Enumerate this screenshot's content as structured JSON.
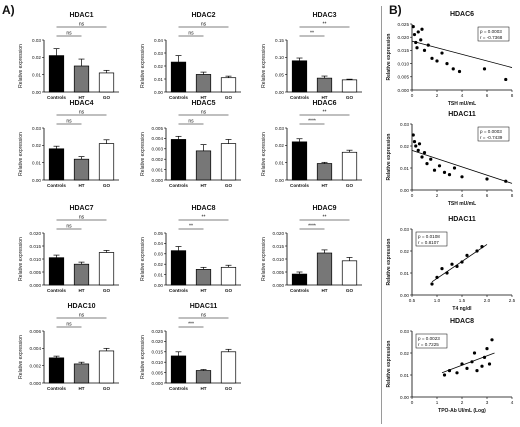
{
  "panels": {
    "a_label": "A)",
    "b_label": "B)"
  },
  "chart_data": [
    {
      "type": "bar",
      "title": "HDAC1",
      "ylabel": "Relative expression",
      "categories": [
        "Controls",
        "HT",
        "GO"
      ],
      "values": [
        0.021,
        0.015,
        0.011
      ],
      "errors": [
        0.004,
        0.004,
        0.0015
      ],
      "ylim": [
        0,
        0.03
      ],
      "yticks": [
        "0.00",
        "0.01",
        "0.02",
        "0.03"
      ],
      "sig": [
        {
          "from": 0,
          "to": 1,
          "label": "ns"
        },
        {
          "from": 0,
          "to": 2,
          "label": "ns"
        }
      ]
    },
    {
      "type": "bar",
      "title": "HDAC2",
      "ylabel": "Relative expression",
      "categories": [
        "Controls",
        "HT",
        "GO"
      ],
      "values": [
        0.023,
        0.0135,
        0.011
      ],
      "errors": [
        0.005,
        0.0018,
        0.0012
      ],
      "ylim": [
        0,
        0.04
      ],
      "yticks": [
        "0.00",
        "0.01",
        "0.02",
        "0.03",
        "0.04"
      ],
      "sig": [
        {
          "from": 0,
          "to": 1,
          "label": "ns"
        },
        {
          "from": 0,
          "to": 2,
          "label": "ns"
        }
      ]
    },
    {
      "type": "bar",
      "title": "HDAC3",
      "ylabel": "Relative expression",
      "categories": [
        "Controls",
        "HT",
        "GO"
      ],
      "values": [
        0.09,
        0.04,
        0.035
      ],
      "errors": [
        0.008,
        0.006,
        0.002
      ],
      "ylim": [
        0,
        0.15
      ],
      "yticks": [
        "0.00",
        "0.05",
        "0.10",
        "0.15"
      ],
      "sig": [
        {
          "from": 0,
          "to": 1,
          "label": "**"
        },
        {
          "from": 0,
          "to": 2,
          "label": "**"
        }
      ]
    },
    {
      "type": "bar",
      "title": "HDAC4",
      "ylabel": "Relative expression",
      "categories": [
        "Controls",
        "HT",
        "GO"
      ],
      "values": [
        0.018,
        0.012,
        0.021
      ],
      "errors": [
        0.0015,
        0.0015,
        0.0022
      ],
      "ylim": [
        0,
        0.03
      ],
      "yticks": [
        "0.00",
        "0.01",
        "0.02",
        "0.03"
      ],
      "sig": [
        {
          "from": 0,
          "to": 1,
          "label": "ns"
        },
        {
          "from": 0,
          "to": 2,
          "label": "ns"
        }
      ]
    },
    {
      "type": "bar",
      "title": "HDAC5",
      "ylabel": "Relative expression",
      "categories": [
        "Controls",
        "HT",
        "GO"
      ],
      "values": [
        0.0039,
        0.0028,
        0.0035
      ],
      "errors": [
        0.0003,
        0.0006,
        0.0004
      ],
      "ylim": [
        0,
        0.005
      ],
      "yticks": [
        "0.000",
        "0.001",
        "0.002",
        "0.003",
        "0.004",
        "0.005"
      ],
      "sig": [
        {
          "from": 0,
          "to": 1,
          "label": "ns"
        },
        {
          "from": 0,
          "to": 2,
          "label": "ns"
        }
      ]
    },
    {
      "type": "bar",
      "title": "HDAC6",
      "ylabel": "Relative expression",
      "categories": [
        "Controls",
        "HT",
        "GO"
      ],
      "values": [
        0.022,
        0.0095,
        0.016
      ],
      "errors": [
        0.0018,
        0.0007,
        0.0012
      ],
      "ylim": [
        0,
        0.03
      ],
      "yticks": [
        "0.00",
        "0.01",
        "0.02",
        "0.03"
      ],
      "sig": [
        {
          "from": 0,
          "to": 1,
          "label": "****"
        },
        {
          "from": 0,
          "to": 2,
          "label": "**"
        }
      ]
    },
    {
      "type": "bar",
      "title": "HDAC7",
      "ylabel": "Relative expression",
      "categories": [
        "Controls",
        "HT",
        "GO"
      ],
      "values": [
        0.0105,
        0.008,
        0.0125
      ],
      "errors": [
        0.001,
        0.0008,
        0.0008
      ],
      "ylim": [
        0,
        0.02
      ],
      "yticks": [
        "0.000",
        "0.005",
        "0.010",
        "0.015",
        "0.020"
      ],
      "sig": [
        {
          "from": 0,
          "to": 1,
          "label": "ns"
        },
        {
          "from": 0,
          "to": 2,
          "label": "ns"
        }
      ]
    },
    {
      "type": "bar",
      "title": "HDAC8",
      "ylabel": "Relative expression",
      "categories": [
        "Controls",
        "HT",
        "GO"
      ],
      "values": [
        0.033,
        0.015,
        0.017
      ],
      "errors": [
        0.004,
        0.002,
        0.002
      ],
      "ylim": [
        0,
        0.05
      ],
      "yticks": [
        "0.00",
        "0.01",
        "0.02",
        "0.03",
        "0.04",
        "0.05"
      ],
      "sig": [
        {
          "from": 0,
          "to": 1,
          "label": "**"
        },
        {
          "from": 0,
          "to": 2,
          "label": "**"
        }
      ]
    },
    {
      "type": "bar",
      "title": "HDAC9",
      "ylabel": "Relative expression",
      "categories": [
        "Controls",
        "HT",
        "GO"
      ],
      "values": [
        0.0042,
        0.0123,
        0.0093
      ],
      "errors": [
        0.0008,
        0.0012,
        0.0013
      ],
      "ylim": [
        0,
        0.02
      ],
      "yticks": [
        "0.000",
        "0.005",
        "0.010",
        "0.015",
        "0.020"
      ],
      "sig": [
        {
          "from": 0,
          "to": 1,
          "label": "****"
        },
        {
          "from": 0,
          "to": 2,
          "label": "**"
        }
      ]
    },
    {
      "type": "bar",
      "title": "HDAC10",
      "ylabel": "Relative expression",
      "categories": [
        "Controls",
        "HT",
        "GO"
      ],
      "values": [
        0.0029,
        0.0022,
        0.0037
      ],
      "errors": [
        0.0002,
        0.0002,
        0.0003
      ],
      "ylim": [
        0,
        0.006
      ],
      "yticks": [
        "0.000",
        "0.002",
        "0.004",
        "0.006"
      ],
      "sig": [
        {
          "from": 0,
          "to": 1,
          "label": "ns"
        },
        {
          "from": 0,
          "to": 2,
          "label": "ns"
        }
      ]
    },
    {
      "type": "bar",
      "title": "HDAC11",
      "ylabel": "Relative expression",
      "categories": [
        "Controls",
        "HT",
        "GO"
      ],
      "values": [
        0.013,
        0.006,
        0.015
      ],
      "errors": [
        0.002,
        0.0005,
        0.0012
      ],
      "ylim": [
        0,
        0.025
      ],
      "yticks": [
        "0.000",
        "0.005",
        "0.010",
        "0.015",
        "0.020",
        "0.025"
      ],
      "sig": [
        {
          "from": 0,
          "to": 1,
          "label": "***"
        },
        {
          "from": 0,
          "to": 2,
          "label": "ns"
        }
      ]
    },
    {
      "type": "scatter",
      "title": "HDAC6",
      "xlabel": "TSH mU/mL",
      "ylabel": "Relative expression",
      "xlim": [
        0,
        8
      ],
      "ylim": [
        0,
        0.025
      ],
      "xticks": [
        "0",
        "2",
        "4",
        "6",
        "8"
      ],
      "yticks": [
        "0.000",
        "0.005",
        "0.010",
        "0.015",
        "0.020",
        "0.025"
      ],
      "stats": [
        "p = 0.0003",
        "r = -0.7368"
      ],
      "points": [
        [
          0.1,
          0.024
        ],
        [
          0.2,
          0.021
        ],
        [
          0.3,
          0.018
        ],
        [
          0.4,
          0.016
        ],
        [
          0.5,
          0.022
        ],
        [
          0.7,
          0.019
        ],
        [
          0.8,
          0.023
        ],
        [
          1.0,
          0.015
        ],
        [
          1.3,
          0.017
        ],
        [
          1.6,
          0.012
        ],
        [
          2.0,
          0.011
        ],
        [
          2.4,
          0.014
        ],
        [
          2.8,
          0.01
        ],
        [
          3.3,
          0.008
        ],
        [
          3.8,
          0.007
        ],
        [
          5.8,
          0.008
        ],
        [
          7.5,
          0.004
        ]
      ],
      "fit": [
        [
          0,
          0.0185
        ],
        [
          8,
          0.0085
        ]
      ]
    },
    {
      "type": "scatter",
      "title": "HDAC11",
      "xlabel": "TSH mU/mL",
      "ylabel": "Relative expression",
      "xlim": [
        0,
        8
      ],
      "ylim": [
        0,
        0.03
      ],
      "xticks": [
        "0",
        "2",
        "4",
        "6",
        "8"
      ],
      "yticks": [
        "0.00",
        "0.01",
        "0.02",
        "0.03"
      ],
      "stats": [
        "p = 0.0003",
        "r = -0.7439"
      ],
      "points": [
        [
          0.1,
          0.025
        ],
        [
          0.2,
          0.022
        ],
        [
          0.3,
          0.02
        ],
        [
          0.5,
          0.018
        ],
        [
          0.6,
          0.021
        ],
        [
          0.8,
          0.015
        ],
        [
          1.0,
          0.017
        ],
        [
          1.2,
          0.012
        ],
        [
          1.5,
          0.014
        ],
        [
          1.8,
          0.009
        ],
        [
          2.2,
          0.011
        ],
        [
          2.6,
          0.008
        ],
        [
          3.0,
          0.007
        ],
        [
          3.4,
          0.01
        ],
        [
          4.0,
          0.006
        ],
        [
          6.0,
          0.005
        ],
        [
          7.5,
          0.004
        ]
      ],
      "fit": [
        [
          0,
          0.018
        ],
        [
          8,
          0.003
        ]
      ]
    },
    {
      "type": "scatter",
      "title": "HDAC11",
      "xlabel": "T4 ng/dl",
      "ylabel": "Relative expression",
      "xlim": [
        0.5,
        2.5
      ],
      "ylim": [
        0,
        0.03
      ],
      "xticks": [
        "0.5",
        "1.0",
        "1.5",
        "2.0",
        "2.5"
      ],
      "yticks": [
        "0.00",
        "0.01",
        "0.02",
        "0.03"
      ],
      "stats": [
        "p = 0.0108",
        "r = 0.8107"
      ],
      "points": [
        [
          0.9,
          0.005
        ],
        [
          1.0,
          0.008
        ],
        [
          1.1,
          0.012
        ],
        [
          1.2,
          0.01
        ],
        [
          1.3,
          0.014
        ],
        [
          1.4,
          0.013
        ],
        [
          1.5,
          0.015
        ],
        [
          1.6,
          0.018
        ],
        [
          1.8,
          0.02
        ],
        [
          1.9,
          0.022
        ]
      ],
      "fit": [
        [
          0.9,
          0.006
        ],
        [
          2.0,
          0.023
        ]
      ]
    },
    {
      "type": "scatter",
      "title": "HDAC8",
      "xlabel": "TPO-Ab UI/mL (Log)",
      "ylabel": "Relative expression",
      "xlim": [
        0,
        4
      ],
      "ylim": [
        0,
        0.03
      ],
      "xticks": [
        "0",
        "1",
        "2",
        "3",
        "4"
      ],
      "yticks": [
        "0.00",
        "0.01",
        "0.02",
        "0.03"
      ],
      "stats": [
        "p = 0.0023",
        "r = 0.7225"
      ],
      "points": [
        [
          1.3,
          0.01
        ],
        [
          1.5,
          0.012
        ],
        [
          1.8,
          0.011
        ],
        [
          2.0,
          0.015
        ],
        [
          2.2,
          0.013
        ],
        [
          2.4,
          0.016
        ],
        [
          2.5,
          0.02
        ],
        [
          2.6,
          0.012
        ],
        [
          2.8,
          0.014
        ],
        [
          2.9,
          0.018
        ],
        [
          3.0,
          0.022
        ],
        [
          3.1,
          0.015
        ],
        [
          3.2,
          0.026
        ]
      ],
      "fit": [
        [
          1.2,
          0.011
        ],
        [
          3.3,
          0.02
        ]
      ]
    }
  ]
}
